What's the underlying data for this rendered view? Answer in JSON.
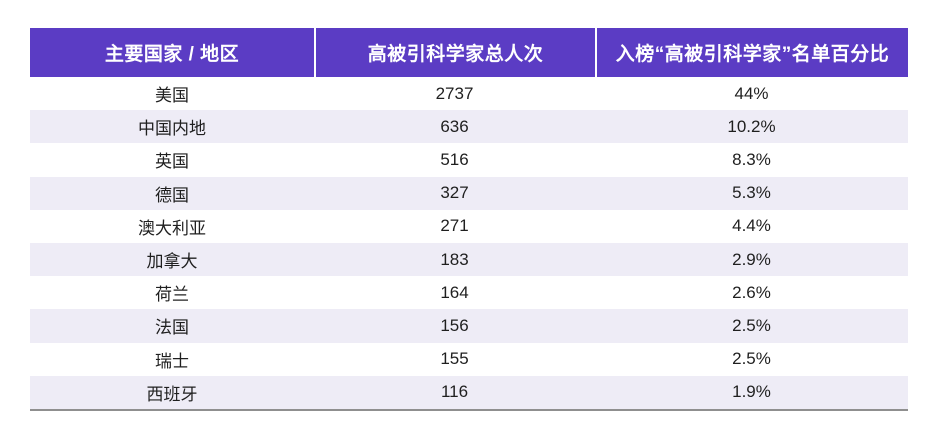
{
  "table": {
    "columns": [
      "主要国家 / 地区",
      "高被引科学家总人次",
      "入榜“高被引科学家”名单百分比"
    ],
    "rows": [
      {
        "country": "美国",
        "count": "2737",
        "percent": "44%"
      },
      {
        "country": "中国内地",
        "count": "636",
        "percent": "10.2%"
      },
      {
        "country": "英国",
        "count": "516",
        "percent": "8.3%"
      },
      {
        "country": "德国",
        "count": "327",
        "percent": "5.3%"
      },
      {
        "country": "澳大利亚",
        "count": "271",
        "percent": "4.4%"
      },
      {
        "country": "加拿大",
        "count": "183",
        "percent": "2.9%"
      },
      {
        "country": "荷兰",
        "count": "164",
        "percent": "2.6%"
      },
      {
        "country": "法国",
        "count": "156",
        "percent": "2.5%"
      },
      {
        "country": "瑞士",
        "count": "155",
        "percent": "2.5%"
      },
      {
        "country": "西班牙",
        "count": "116",
        "percent": "1.9%"
      }
    ]
  },
  "colors": {
    "header_bg": "#5b3cc4",
    "header_text": "#ffffff",
    "stripe_bg": "#eeecf6",
    "body_text": "#1f1f1f",
    "bottom_border": "#8f8f8f"
  },
  "chart_data": {
    "type": "table",
    "title": "",
    "columns": [
      "主要国家 / 地区",
      "高被引科学家总人次",
      "入榜“高被引科学家”名单百分比"
    ],
    "rows": [
      [
        "美国",
        2737,
        "44%"
      ],
      [
        "中国内地",
        636,
        "10.2%"
      ],
      [
        "英国",
        516,
        "8.3%"
      ],
      [
        "德国",
        327,
        "5.3%"
      ],
      [
        "澳大利亚",
        271,
        "4.4%"
      ],
      [
        "加拿大",
        183,
        "2.9%"
      ],
      [
        "荷兰",
        164,
        "2.6%"
      ],
      [
        "法国",
        156,
        "2.5%"
      ],
      [
        "瑞士",
        155,
        "2.5%"
      ],
      [
        "西班牙",
        116,
        "1.9%"
      ]
    ],
    "layout_hints": {
      "striped_rows": true,
      "header_style": "purple-filled-white-bold-text",
      "cell_alignment": "center"
    }
  }
}
